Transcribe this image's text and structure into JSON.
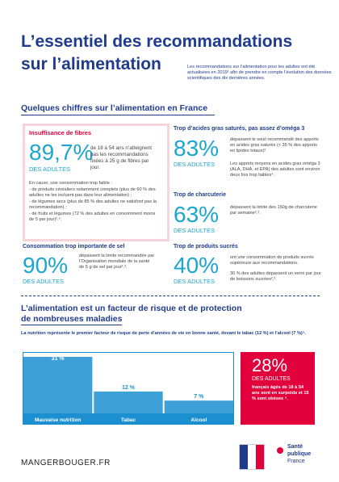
{
  "header": {
    "title_line1": "L’essentiel des recommandations",
    "title_line2": "sur l’alimentation",
    "intro": "Les recommandations sur l’alimentation pour les adultes ont été actualisées en 2019¹ afin de prendre en compte l’évolution des données scientifiques des dix dernières années."
  },
  "section1": {
    "heading": "Quelques chiffres sur l’alimentation en France",
    "fibres": {
      "title": "Insuffisance de fibres",
      "stat": "89,7%",
      "unit": "DES ADULTES",
      "text": "de 18 à 54 ans n’atteignent pas les recommandations fixées à 25 g de fibres par jour.",
      "causes": [
        "En cause, une consommation trop faible :",
        "- de produits céréaliers notamment complets (plus de 60 % des adultes ne les incluent pas dans leur alimentation) ;",
        "- de légumes secs (plus de 85 % des adultes ne satisfont pas la recommandation) ;",
        "- de fruits et légumes (72 % des adultes en consomment moins de 5 par jour)².³."
      ]
    },
    "acides": {
      "title": "Trop d’acides gras saturés, pas assez d’oméga 3",
      "stat": "83%",
      "unit": "DES ADULTES",
      "text1": "dépassent le seuil recommandé des apports en acides gras saturés (< 35 % des apports en lipides totaux)².",
      "text2": "Les apports moyens en acides gras oméga 3 (ALA, DHA, et EPA) des adultes sont environ deux fois trop faibles⁴."
    },
    "charcuterie": {
      "title": "Trop de charcuterie",
      "stat": "63%",
      "unit": "DES ADULTES",
      "text": "dépassent la limite des 150g de charcuterie par semaine².³."
    },
    "sel": {
      "title": "Consommation trop importante de sel",
      "stat": "90%",
      "unit": "DES ADULTES",
      "text": "dépassent la limite recommandée par l’Organisation mondiale de la santé de 5 g de sel par jour²,³."
    },
    "sucres": {
      "title": "Trop de produits sucrés",
      "stat": "40%",
      "unit": "DES ADULTES",
      "text1": "ont une consommation de produits sucrés supérieure aux recommandations.",
      "text2": "30 % des adultes dépassent un verre par jour de boissons sucrées²,³."
    }
  },
  "section2": {
    "heading_line1": "L’alimentation est un facteur de risque et de protection",
    "heading_line2": "de nombreuses maladies",
    "intro": "La nutrition représente le premier facteur de risque de perte d’années de vie en bonne santé, devant le tabac (12 %) et l’alcool (7 %)⁵.",
    "risk_chart": {
      "categories": [
        "Mauvaise nutrition",
        "Tabac",
        "Alcool"
      ],
      "values": [
        31,
        12,
        7
      ],
      "value_labels": [
        "31 %",
        "12 %",
        "7 %"
      ]
    },
    "obesity": {
      "stat": "28%",
      "unit": "DES ADULTES",
      "text": "français âgés de 18 à 54 ans sont en surpoids et 15 % sont obèses ⁶."
    }
  },
  "footer": {
    "site": "MANGERBOUGER.FR",
    "logo_line1": "Santé",
    "logo_line2": "publique",
    "logo_line3": "France"
  }
}
